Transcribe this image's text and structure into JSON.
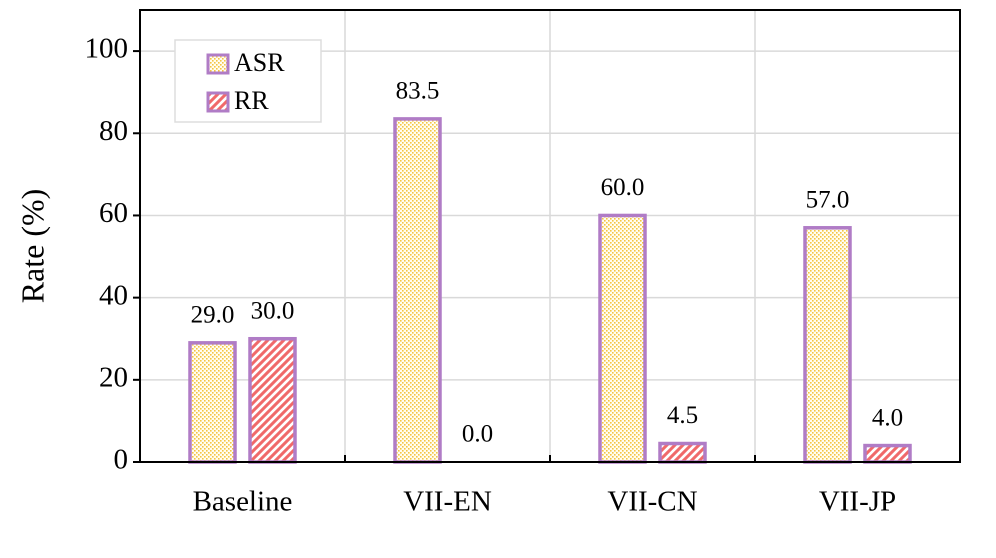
{
  "chart_data": {
    "type": "bar",
    "y_label": "Rate (%)",
    "categories": [
      "Baseline",
      "VII-EN",
      "VII-CN",
      "VII-JP"
    ],
    "series": [
      {
        "name": "ASR",
        "color": "#f5c542",
        "edge_color": "#b07cc6",
        "label_color": "#a1466f",
        "values": [
          29,
          83.5,
          60,
          57
        ],
        "value_labels": [
          "29.0",
          "83.5",
          "60.0",
          "57.0"
        ]
      },
      {
        "name": "RR",
        "color": "#f06a6a",
        "edge_color": "#b07cc6",
        "label_color": "#000000",
        "values": [
          30,
          0,
          4.5,
          4
        ],
        "value_labels": [
          "30.0",
          "0.0",
          "4.5",
          "4.0"
        ]
      }
    ],
    "ylim": [
      0,
      110
    ],
    "yticks": [
      0,
      20,
      40,
      60,
      80,
      100
    ],
    "grid": true,
    "legend": "upper left"
  }
}
